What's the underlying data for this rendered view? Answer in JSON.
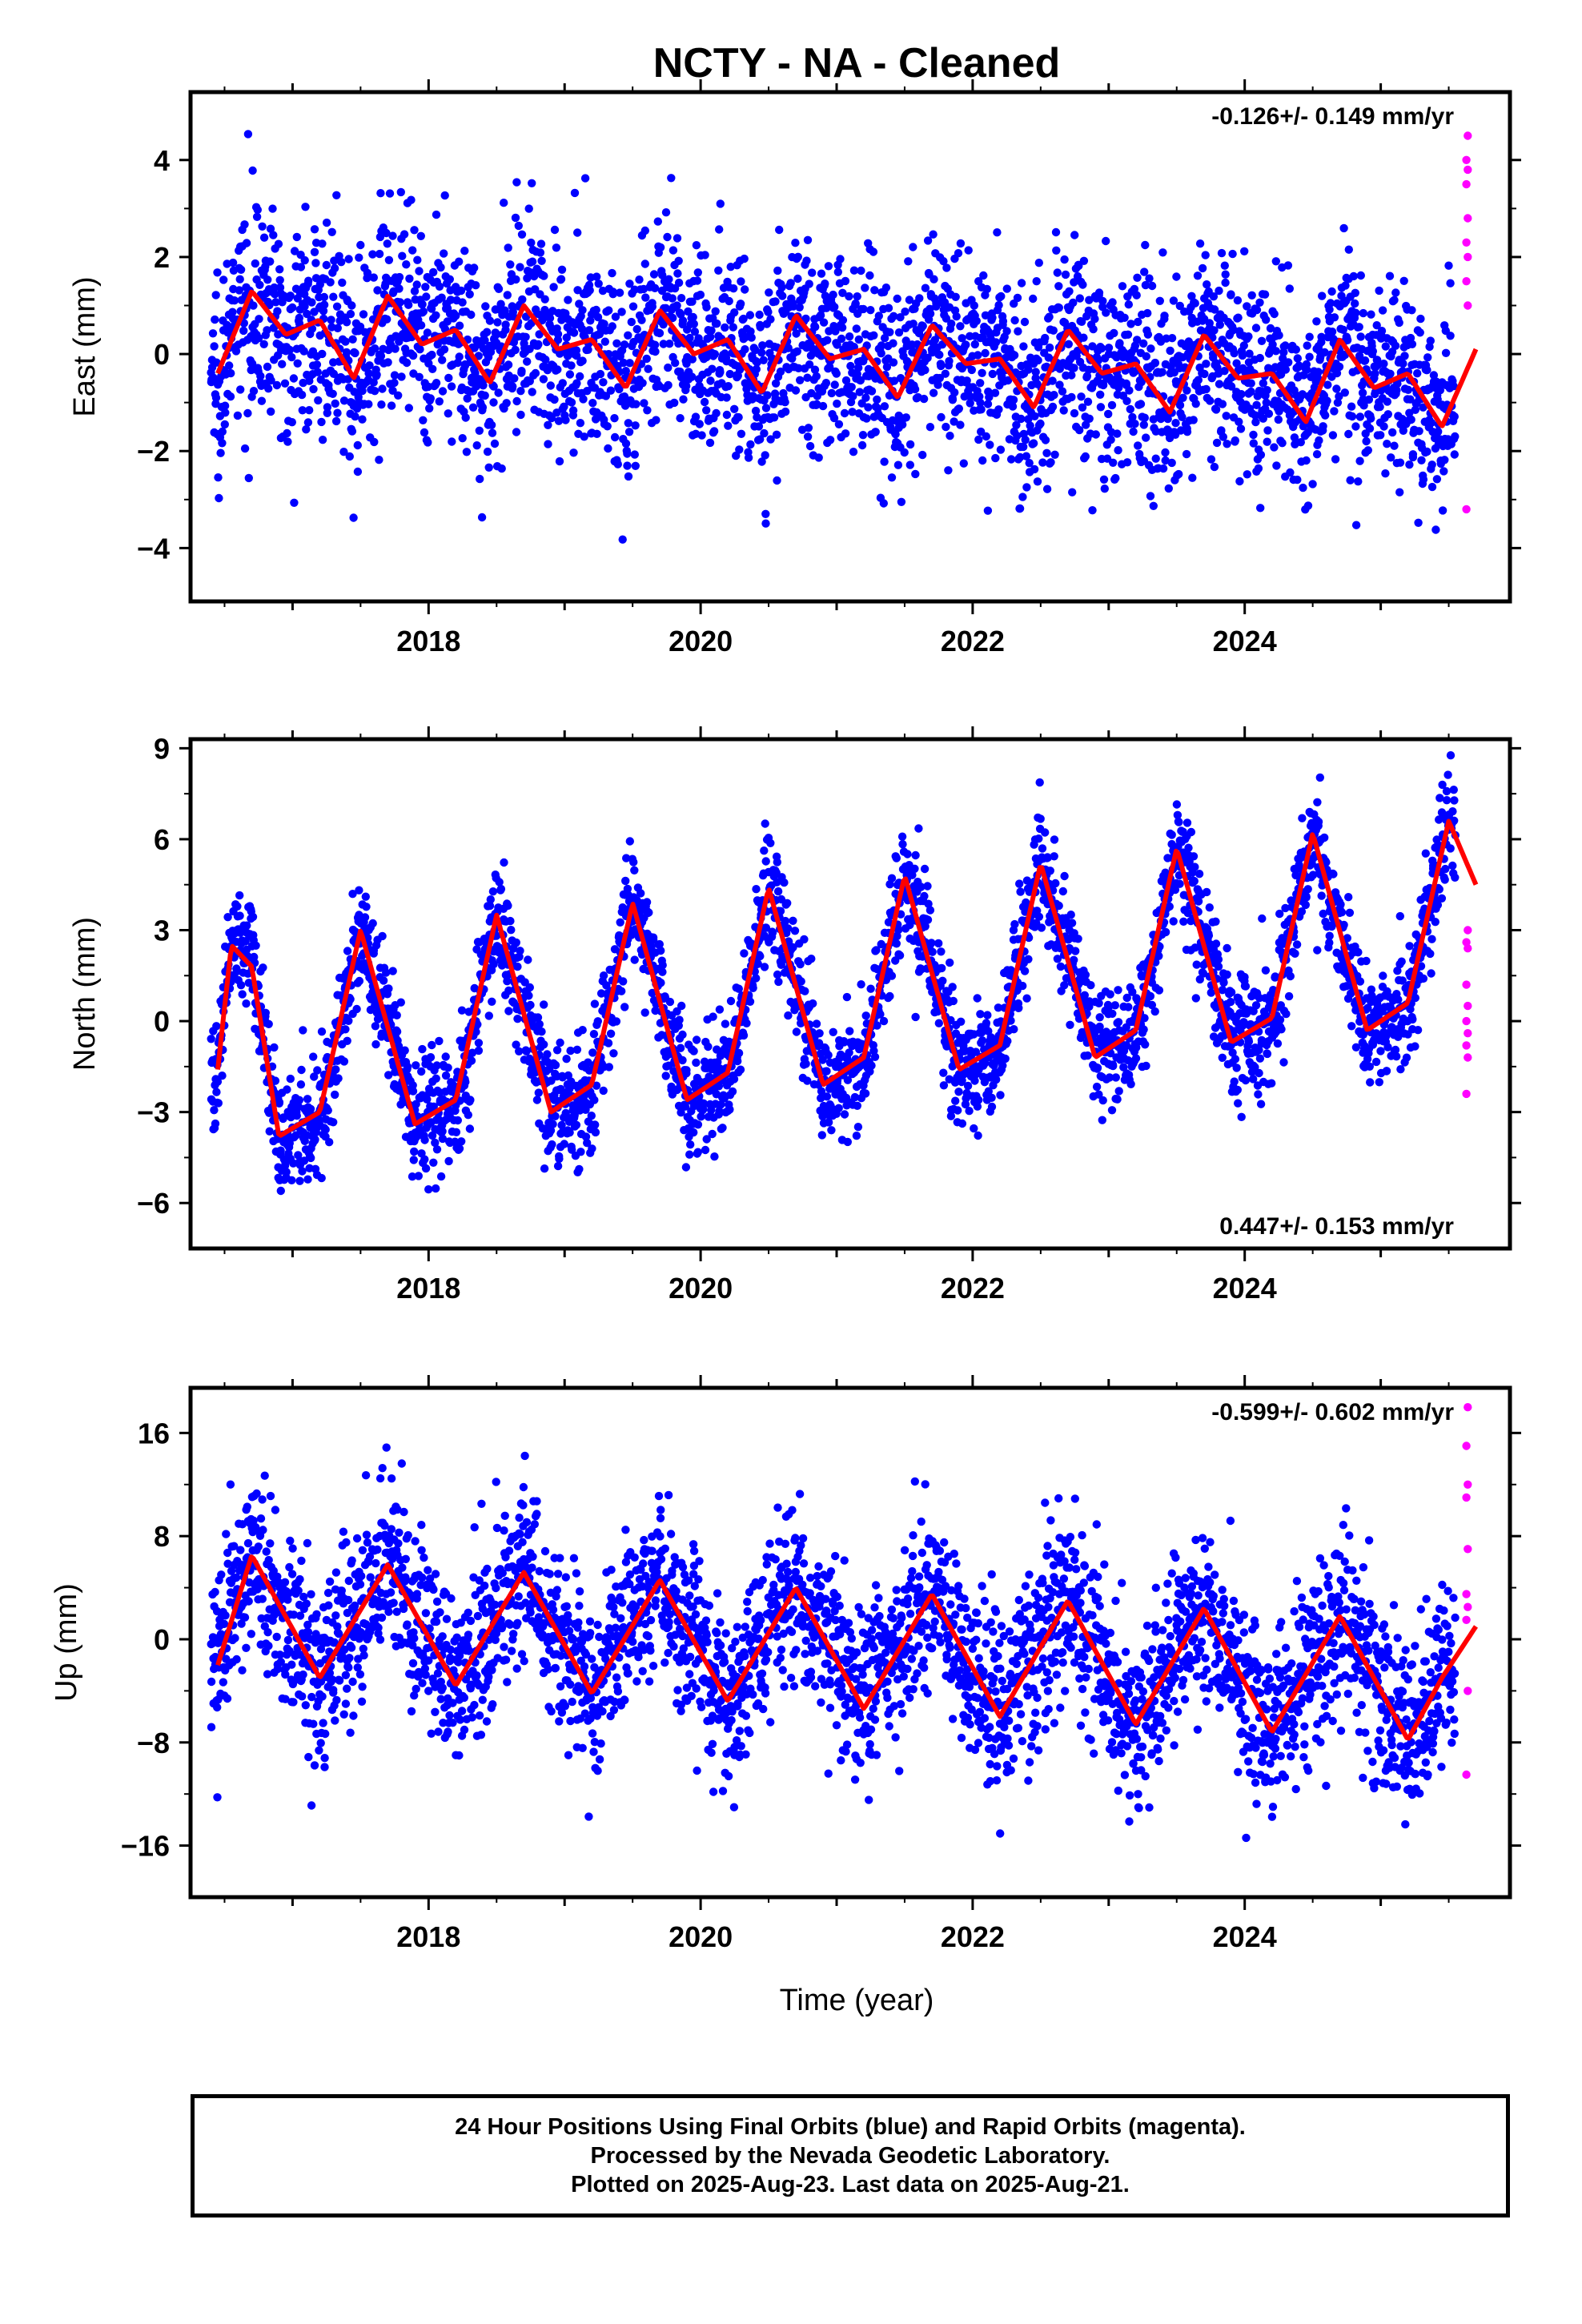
{
  "title": "NCTY  - NA - Cleaned",
  "xlabel": "Time (year)",
  "footer": {
    "line1": "24 Hour Positions Using Final Orbits (blue) and Rapid Orbits (magenta).",
    "line2": "Processed by the Nevada Geodetic Laboratory.",
    "line3": "Plotted on 2025-Aug-23. Last data on 2025-Aug-21."
  },
  "colors": {
    "final": "#0000ff",
    "rapid": "#ff00ff",
    "model": "#ff0000",
    "axes": "#000000"
  },
  "chart_data": [
    {
      "type": "scatter",
      "id": "east",
      "ylabel": "East (mm)",
      "rate": "-0.126+/- 0.149 mm/yr",
      "rate_position": "top-right",
      "xlim": [
        2016.25,
        2025.95
      ],
      "ylim": [
        -5.1,
        5.4
      ],
      "yticks": [
        -4,
        -2,
        0,
        2,
        4
      ],
      "yticklabels": [
        "−4",
        "−2",
        "0",
        "2",
        "4"
      ],
      "xticks": [
        2018,
        2020,
        2022,
        2024
      ],
      "xticklabels": [
        "2018",
        "2020",
        "2022",
        "2024"
      ],
      "data_start": 2016.4,
      "data_end": 2025.55,
      "rapid_start": 2025.55,
      "rapid_end": 2025.64,
      "model": {
        "offset": 0.3,
        "rate": -0.126,
        "t0": 2021.0,
        "annual": 0.55,
        "semiannual": 0.35,
        "phase_a": 2.0,
        "phase_s": 0.6,
        "noise": 1.05
      },
      "model_curve": {
        "x": [
          2016.45,
          2016.7,
          2016.95,
          2017.2,
          2017.45,
          2017.7,
          2017.95,
          2018.2,
          2018.45,
          2018.7,
          2018.95,
          2019.2,
          2019.45,
          2019.7,
          2019.95,
          2020.2,
          2020.45,
          2020.7,
          2020.95,
          2021.2,
          2021.45,
          2021.7,
          2021.95,
          2022.2,
          2022.45,
          2022.7,
          2022.95,
          2023.2,
          2023.45,
          2023.7,
          2023.95,
          2024.2,
          2024.45,
          2024.7,
          2024.95,
          2025.2,
          2025.45,
          2025.7
        ],
        "y": [
          -0.4,
          1.3,
          0.4,
          0.7,
          -0.5,
          1.2,
          0.2,
          0.5,
          -0.6,
          1.0,
          0.1,
          0.3,
          -0.7,
          0.9,
          0.0,
          0.3,
          -0.8,
          0.8,
          -0.1,
          0.1,
          -0.9,
          0.6,
          -0.2,
          -0.1,
          -1.1,
          0.5,
          -0.4,
          -0.2,
          -1.2,
          0.4,
          -0.5,
          -0.4,
          -1.4,
          0.3,
          -0.7,
          -0.4,
          -1.5,
          0.1
        ]
      },
      "rapid_points": [
        4.5,
        4.0,
        3.8,
        3.5,
        2.8,
        2.3,
        2.0,
        1.5,
        1.0,
        -3.2
      ]
    },
    {
      "type": "scatter",
      "id": "north",
      "ylabel": "North (mm)",
      "rate": "0.447+/- 0.153 mm/yr",
      "rate_position": "bottom-right",
      "xlim": [
        2016.25,
        2025.95
      ],
      "ylim": [
        -7.5,
        9.3
      ],
      "yticks": [
        -6,
        -3,
        0,
        3,
        6,
        9
      ],
      "yticklabels": [
        "−6",
        "−3",
        "0",
        "3",
        "6",
        "9"
      ],
      "xticks": [
        2018,
        2020,
        2022,
        2024
      ],
      "xticklabels": [
        "2018",
        "2020",
        "2022",
        "2024"
      ],
      "data_start": 2016.4,
      "data_end": 2025.55,
      "rapid_start": 2025.55,
      "rapid_end": 2025.64,
      "model": {
        "offset": 0.6,
        "rate": 0.447,
        "t0": 2021.0,
        "annual": 3.3,
        "semiannual": 1.2,
        "phase_a": 1.45,
        "phase_s": 0.9,
        "noise": 0.95
      },
      "model_curve": {
        "x": [
          2016.45,
          2016.55,
          2016.7,
          2016.9,
          2017.2,
          2017.5,
          2017.9,
          2018.2,
          2018.5,
          2018.9,
          2019.2,
          2019.5,
          2019.9,
          2020.2,
          2020.5,
          2020.9,
          2021.2,
          2021.5,
          2021.9,
          2022.2,
          2022.5,
          2022.9,
          2023.2,
          2023.5,
          2023.9,
          2024.2,
          2024.5,
          2024.9,
          2025.2,
          2025.5,
          2025.7
        ],
        "y": [
          -1.6,
          2.5,
          1.8,
          -3.8,
          -3.0,
          3.0,
          -3.4,
          -2.6,
          3.5,
          -3.0,
          -2.1,
          3.9,
          -2.6,
          -1.7,
          4.4,
          -2.1,
          -1.2,
          4.8,
          -1.6,
          -0.8,
          5.2,
          -1.2,
          -0.3,
          5.7,
          -0.7,
          0.1,
          6.2,
          -0.3,
          0.6,
          6.6,
          4.5
        ]
      },
      "rapid_points": [
        3.0,
        2.6,
        2.4,
        1.2,
        0.5,
        0.0,
        -0.4,
        -0.8,
        -1.2,
        -2.4
      ]
    },
    {
      "type": "scatter",
      "id": "up",
      "ylabel": "Up (mm)",
      "rate": "-0.599+/- 0.602 mm/yr",
      "rate_position": "top-right",
      "xlim": [
        2016.25,
        2025.95
      ],
      "ylim": [
        -20.0,
        19.5
      ],
      "yticks": [
        -16,
        -8,
        0,
        8,
        16
      ],
      "yticklabels": [
        "−16",
        "−8",
        "0",
        "8",
        "16"
      ],
      "xticks": [
        2018,
        2020,
        2022,
        2024
      ],
      "xticklabels": [
        "2018",
        "2020",
        "2022",
        "2024"
      ],
      "data_start": 2016.4,
      "data_end": 2025.55,
      "rapid_start": 2025.55,
      "rapid_end": 2025.64,
      "model": {
        "offset": 1.2,
        "rate": -0.599,
        "t0": 2021.0,
        "annual": 5.0,
        "semiannual": 0.8,
        "phase_a": 1.25,
        "phase_s": 0.5,
        "noise": 3.4
      },
      "model_curve": {
        "x": [
          2016.45,
          2016.7,
          2017.2,
          2017.7,
          2018.2,
          2018.7,
          2019.2,
          2019.7,
          2020.2,
          2020.7,
          2021.2,
          2021.7,
          2022.2,
          2022.7,
          2023.2,
          2023.7,
          2024.2,
          2024.7,
          2025.2,
          2025.45,
          2025.7
        ],
        "y": [
          -2.0,
          6.5,
          -3.0,
          5.8,
          -3.6,
          5.2,
          -4.2,
          4.6,
          -4.8,
          4.0,
          -5.4,
          3.5,
          -6.0,
          3.0,
          -6.6,
          2.4,
          -7.2,
          1.8,
          -7.8,
          -3.0,
          1.0
        ]
      },
      "rapid_points": [
        18.0,
        15.0,
        12.0,
        11.0,
        7.0,
        3.5,
        2.5,
        1.5,
        -4.0,
        -10.5
      ]
    }
  ]
}
